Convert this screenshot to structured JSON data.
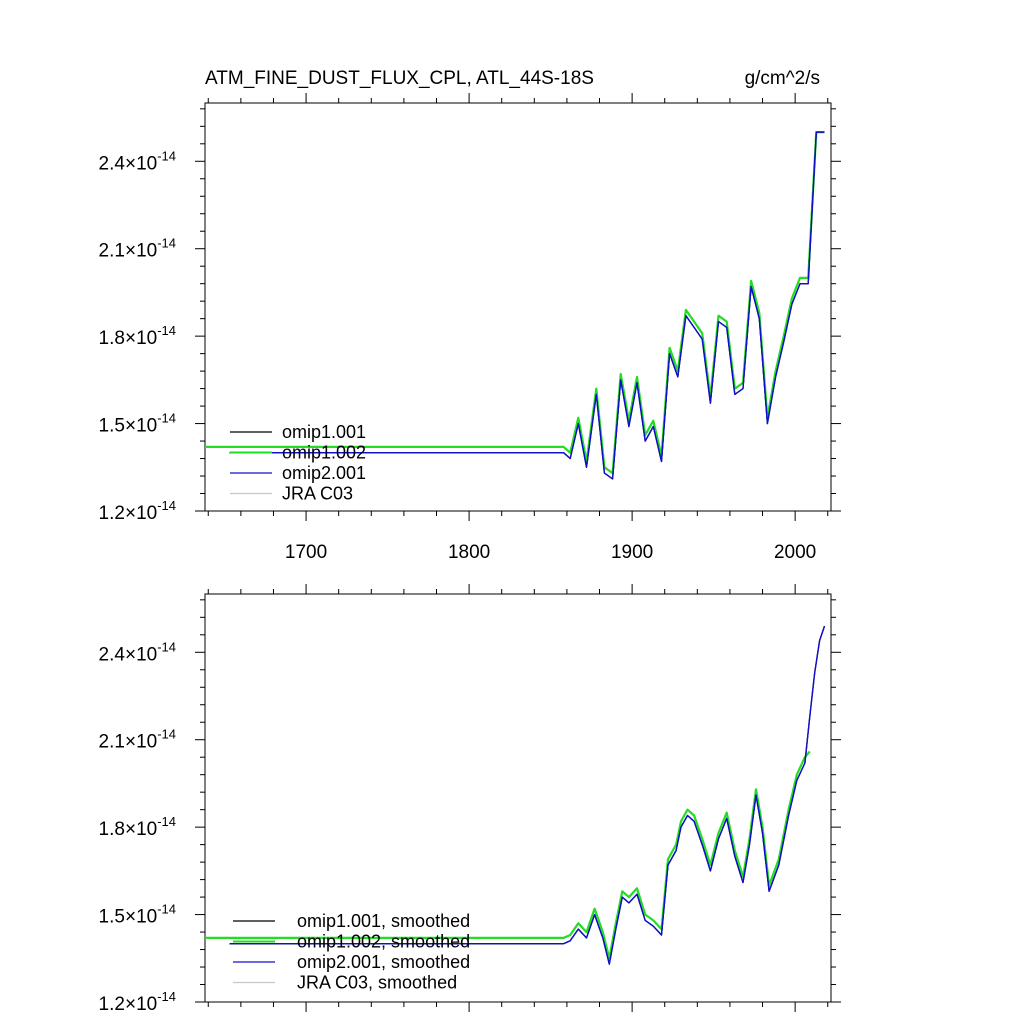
{
  "header": {
    "title": "ATM_FINE_DUST_FLUX_CPL, ATL_44S-18S",
    "units": "g/cm^2/s"
  },
  "colors": {
    "omip1_001": "#000000",
    "omip1_002": "#22dd22",
    "omip2_001": "#1010cc",
    "jra_c03": "#c8c8c8"
  },
  "chart_data": [
    {
      "type": "line",
      "title": "ATM_FINE_DUST_FLUX_CPL, ATL_44S-18S",
      "units": "g/cm^2/s",
      "xlim": [
        1638,
        2022
      ],
      "ylim": [
        1.2e-14,
        2.6e-14
      ],
      "x_major_ticks": [
        1700,
        1800,
        1900,
        2000
      ],
      "x_tick_labels": [
        "1700",
        "1800",
        "1900",
        "2000"
      ],
      "y_major_ticks": [
        1.2e-14,
        1.5e-14,
        1.8e-14,
        2.1e-14,
        2.4e-14
      ],
      "y_tick_mantissa": [
        "1.2",
        "1.5",
        "1.8",
        "2.1",
        "2.4"
      ],
      "y_tick_times": "×10",
      "y_tick_exponent": "-14",
      "legend_placement": "bottom-left",
      "legend": [
        "omip1.001",
        "omip1.002",
        "omip2.001",
        "JRA C03"
      ],
      "series": [
        {
          "name": "omip1.001",
          "x": [
            1653,
            1858,
            1862,
            1867,
            1872,
            1878,
            1883,
            1888,
            1893,
            1898,
            1903,
            1908,
            1913,
            1918,
            1923,
            1928,
            1933,
            1938,
            1943,
            1948,
            1953,
            1958,
            1963,
            1968,
            1973,
            1978,
            1983,
            1988,
            1993,
            1998,
            2003,
            2008,
            2013,
            2018
          ],
          "y": [
            1.4e-14,
            1.4e-14,
            1.38e-14,
            1.5e-14,
            1.35e-14,
            1.6e-14,
            1.33e-14,
            1.31e-14,
            1.65e-14,
            1.49e-14,
            1.64e-14,
            1.44e-14,
            1.49e-14,
            1.37e-14,
            1.74e-14,
            1.66e-14,
            1.87e-14,
            1.83e-14,
            1.79e-14,
            1.57e-14,
            1.85e-14,
            1.83e-14,
            1.6e-14,
            1.62e-14,
            1.97e-14,
            1.86e-14,
            1.5e-14,
            1.66e-14,
            1.78e-14,
            1.91e-14,
            1.98e-14,
            1.98e-14,
            2.5e-14,
            2.5e-14
          ]
        },
        {
          "name": "omip1.002",
          "x": [
            1638,
            1858,
            1862,
            1867,
            1872,
            1878,
            1883,
            1888,
            1893,
            1898,
            1903,
            1908,
            1913,
            1918,
            1923,
            1928,
            1933,
            1938,
            1943,
            1948,
            1953,
            1958,
            1963,
            1968,
            1973,
            1978,
            1983,
            1988,
            1993,
            1998,
            2003,
            2008,
            2013,
            2018
          ],
          "y": [
            1.42e-14,
            1.42e-14,
            1.4e-14,
            1.52e-14,
            1.37e-14,
            1.62e-14,
            1.35e-14,
            1.33e-14,
            1.67e-14,
            1.51e-14,
            1.66e-14,
            1.46e-14,
            1.51e-14,
            1.39e-14,
            1.76e-14,
            1.68e-14,
            1.89e-14,
            1.85e-14,
            1.81e-14,
            1.59e-14,
            1.87e-14,
            1.85e-14,
            1.62e-14,
            1.64e-14,
            1.99e-14,
            1.88e-14,
            1.52e-14,
            1.68e-14,
            1.8e-14,
            1.93e-14,
            2e-14,
            2e-14,
            2.5e-14,
            2.5e-14
          ]
        },
        {
          "name": "omip2.001",
          "x": [
            1653,
            1858,
            1862,
            1867,
            1872,
            1878,
            1883,
            1888,
            1893,
            1898,
            1903,
            1908,
            1913,
            1918,
            1923,
            1928,
            1933,
            1938,
            1943,
            1948,
            1953,
            1958,
            1963,
            1968,
            1973,
            1978,
            1983,
            1988,
            1993,
            1998,
            2003,
            2008,
            2013,
            2018
          ],
          "y": [
            1.4e-14,
            1.4e-14,
            1.38e-14,
            1.5e-14,
            1.35e-14,
            1.6e-14,
            1.33e-14,
            1.31e-14,
            1.65e-14,
            1.49e-14,
            1.64e-14,
            1.44e-14,
            1.49e-14,
            1.37e-14,
            1.74e-14,
            1.66e-14,
            1.87e-14,
            1.83e-14,
            1.79e-14,
            1.57e-14,
            1.85e-14,
            1.83e-14,
            1.6e-14,
            1.62e-14,
            1.97e-14,
            1.86e-14,
            1.5e-14,
            1.66e-14,
            1.78e-14,
            1.91e-14,
            1.98e-14,
            1.98e-14,
            2.5e-14,
            2.5e-14
          ]
        }
      ]
    },
    {
      "type": "line",
      "xlim": [
        1638,
        2022
      ],
      "ylim": [
        1.2e-14,
        2.6e-14
      ],
      "x_major_ticks": [
        1700,
        1800,
        1900,
        2000
      ],
      "y_major_ticks": [
        1.2e-14,
        1.5e-14,
        1.8e-14,
        2.1e-14,
        2.4e-14
      ],
      "y_tick_mantissa": [
        "1.2",
        "1.5",
        "1.8",
        "2.1",
        "2.4"
      ],
      "y_tick_times": "×10",
      "y_tick_exponent": "-14",
      "legend_placement": "bottom-left",
      "legend": [
        "omip1.001, smoothed",
        "omip1.002, smoothed",
        "omip2.001, smoothed",
        "JRA C03, smoothed"
      ],
      "series": [
        {
          "name": "omip1.001, smoothed",
          "x": [
            1653,
            1858,
            1862,
            1867,
            1872,
            1877,
            1882,
            1886,
            1890,
            1894,
            1898,
            1903,
            1908,
            1913,
            1918,
            1922,
            1927,
            1930,
            1934,
            1938,
            1943,
            1948,
            1953,
            1958,
            1963,
            1968,
            1972,
            1976,
            1980,
            1984,
            1990,
            1996,
            2001,
            2006,
            2009,
            2012,
            2015,
            2018
          ],
          "y": [
            1.4e-14,
            1.4e-14,
            1.41e-14,
            1.45e-14,
            1.42e-14,
            1.5e-14,
            1.42e-14,
            1.33e-14,
            1.45e-14,
            1.56e-14,
            1.54e-14,
            1.57e-14,
            1.48e-14,
            1.46e-14,
            1.43e-14,
            1.67e-14,
            1.72e-14,
            1.8e-14,
            1.84e-14,
            1.82e-14,
            1.74e-14,
            1.65e-14,
            1.76e-14,
            1.83e-14,
            1.7e-14,
            1.61e-14,
            1.74e-14,
            1.91e-14,
            1.78e-14,
            1.58e-14,
            1.67e-14,
            1.84e-14,
            1.96e-14,
            2.02e-14,
            2.18e-14,
            2.33e-14,
            2.44e-14,
            2.49e-14
          ]
        },
        {
          "name": "omip1.002, smoothed",
          "x": [
            1638,
            1858,
            1862,
            1867,
            1872,
            1877,
            1882,
            1886,
            1890,
            1894,
            1898,
            1903,
            1908,
            1913,
            1918,
            1922,
            1927,
            1930,
            1934,
            1938,
            1943,
            1948,
            1953,
            1958,
            1963,
            1968,
            1972,
            1976,
            1980,
            1984,
            1990,
            1996,
            2001,
            2006,
            2009
          ],
          "y": [
            1.42e-14,
            1.42e-14,
            1.43e-14,
            1.47e-14,
            1.44e-14,
            1.52e-14,
            1.44e-14,
            1.35e-14,
            1.47e-14,
            1.58e-14,
            1.56e-14,
            1.59e-14,
            1.5e-14,
            1.48e-14,
            1.45e-14,
            1.69e-14,
            1.74e-14,
            1.82e-14,
            1.86e-14,
            1.84e-14,
            1.76e-14,
            1.67e-14,
            1.78e-14,
            1.85e-14,
            1.72e-14,
            1.63e-14,
            1.76e-14,
            1.93e-14,
            1.8e-14,
            1.6e-14,
            1.69e-14,
            1.86e-14,
            1.98e-14,
            2.04e-14,
            2.06e-14
          ]
        },
        {
          "name": "omip2.001, smoothed",
          "x": [
            1653,
            1858,
            1862,
            1867,
            1872,
            1877,
            1882,
            1886,
            1890,
            1894,
            1898,
            1903,
            1908,
            1913,
            1918,
            1922,
            1927,
            1930,
            1934,
            1938,
            1943,
            1948,
            1953,
            1958,
            1963,
            1968,
            1972,
            1976,
            1980,
            1984,
            1990,
            1996,
            2001,
            2006,
            2009,
            2012,
            2015,
            2018
          ],
          "y": [
            1.4e-14,
            1.4e-14,
            1.41e-14,
            1.45e-14,
            1.42e-14,
            1.5e-14,
            1.42e-14,
            1.33e-14,
            1.45e-14,
            1.56e-14,
            1.54e-14,
            1.57e-14,
            1.48e-14,
            1.46e-14,
            1.43e-14,
            1.67e-14,
            1.72e-14,
            1.8e-14,
            1.84e-14,
            1.82e-14,
            1.74e-14,
            1.65e-14,
            1.76e-14,
            1.83e-14,
            1.7e-14,
            1.61e-14,
            1.74e-14,
            1.91e-14,
            1.78e-14,
            1.58e-14,
            1.67e-14,
            1.84e-14,
            1.96e-14,
            2.02e-14,
            2.18e-14,
            2.33e-14,
            2.44e-14,
            2.49e-14
          ]
        }
      ]
    }
  ]
}
